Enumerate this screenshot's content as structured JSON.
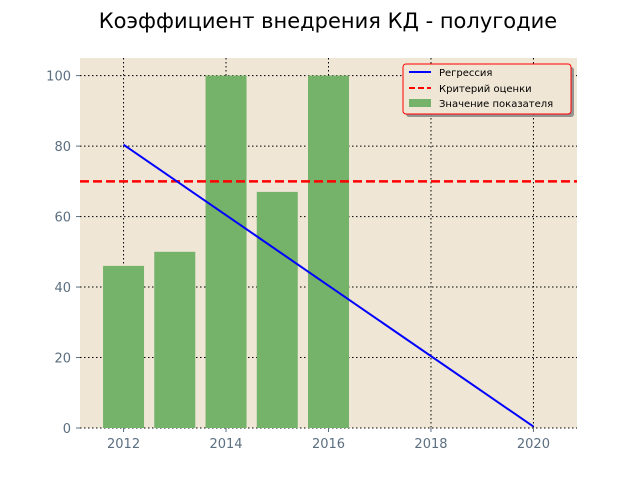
{
  "chart_data": {
    "type": "bar",
    "title": "Коэффициент внедрения КД - полугодие",
    "xlabel": "",
    "ylabel": "",
    "xlim": [
      2011.15,
      2020.85
    ],
    "ylim": [
      0,
      105
    ],
    "xticks": [
      2012,
      2014,
      2016,
      2018,
      2020
    ],
    "yticks": [
      0,
      20,
      40,
      60,
      80,
      100
    ],
    "grid": true,
    "legend_position": "top-right",
    "colors": {
      "plot_background": "#efe6d5",
      "bars": "#75b26a",
      "regression": "#0000ff",
      "criterion": "#ff0000",
      "grid": "#000000"
    },
    "bars": {
      "name": "Значение показателя",
      "x": [
        2012,
        2013,
        2014,
        2015,
        2016
      ],
      "values": [
        46,
        50,
        100,
        67,
        100
      ]
    },
    "regression": {
      "name": "Регрессия",
      "x": [
        2012,
        2020
      ],
      "values": [
        80.4,
        0.4
      ]
    },
    "criterion": {
      "name": "Критерий оценки",
      "value": 70
    }
  }
}
